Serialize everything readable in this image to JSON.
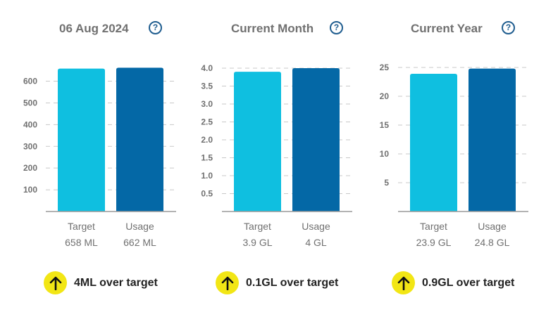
{
  "colors": {
    "target": "#0fbfe0",
    "usage": "#0468a6",
    "accent": "#f2e615",
    "help": "#1f5d8f",
    "grid": "#c8c8c8"
  },
  "panels": [
    {
      "title": "06 Aug 2024",
      "help_icon": "?",
      "summary": "4ML over target",
      "summary_icon": "arrow-up-icon"
    },
    {
      "title": "Current Month",
      "help_icon": "?",
      "summary": "0.1GL over target",
      "summary_icon": "arrow-up-icon"
    },
    {
      "title": "Current Year",
      "help_icon": "?",
      "summary": "0.9GL over target",
      "summary_icon": "arrow-up-icon"
    }
  ],
  "chart_data": [
    {
      "type": "bar",
      "title": "06 Aug 2024",
      "categories": [
        "Target",
        "Usage"
      ],
      "values": [
        658,
        662
      ],
      "value_labels": [
        "658 ML",
        "662 ML"
      ],
      "ylim": [
        0,
        660
      ],
      "yticks": [
        100,
        200,
        300,
        400,
        500,
        600
      ],
      "ytick_labels": [
        "100",
        "200",
        "300",
        "400",
        "500",
        "600"
      ],
      "grid": true
    },
    {
      "type": "bar",
      "title": "Current Month",
      "categories": [
        "Target",
        "Usage"
      ],
      "values": [
        3.9,
        4.0
      ],
      "value_labels": [
        "3.9 GL",
        "4 GL"
      ],
      "ylim": [
        0,
        4.0
      ],
      "yticks": [
        0.5,
        1.0,
        1.5,
        2.0,
        2.5,
        3.0,
        3.5,
        4.0
      ],
      "ytick_labels": [
        "0.5",
        "1.0",
        "1.5",
        "2.0",
        "2.5",
        "3.0",
        "3.5",
        "4.0"
      ],
      "grid": true
    },
    {
      "type": "bar",
      "title": "Current Year",
      "categories": [
        "Target",
        "Usage"
      ],
      "values": [
        23.9,
        24.8
      ],
      "value_labels": [
        "23.9 GL",
        "24.8 GL"
      ],
      "ylim": [
        0,
        25
      ],
      "yticks": [
        5,
        10,
        15,
        20,
        25
      ],
      "ytick_labels": [
        "5",
        "10",
        "15",
        "20",
        "25"
      ],
      "grid": true
    }
  ]
}
